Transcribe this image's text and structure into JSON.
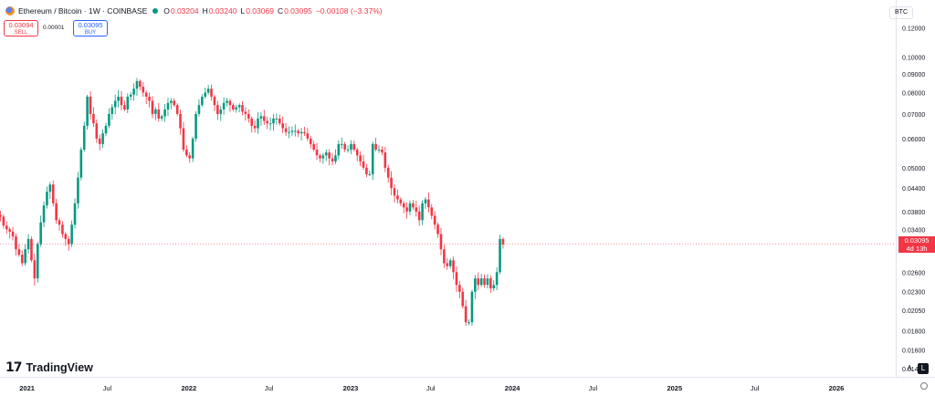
{
  "header": {
    "symbol": "Ethereum / Bitcoin · 1W · COINBASE",
    "o_label": "O",
    "o": "0.03204",
    "h_label": "H",
    "h": "0.03240",
    "l_label": "L",
    "l": "0.03069",
    "c_label": "C",
    "c": "0.03095",
    "change": "−0.00108 (−3.37%)"
  },
  "trade": {
    "sell_price": "0.03094",
    "sell_label": "SELL",
    "spread": "0.00001",
    "buy_price": "0.03095",
    "buy_label": "BUY"
  },
  "currency": "BTC",
  "last_price": {
    "value": "0.03095",
    "countdown": "4d 13h"
  },
  "brand": "TradingView",
  "scale_buttons": {
    "auto": "A",
    "log": "L"
  },
  "colors": {
    "up": "#089981",
    "down": "#f23645",
    "axis_text": "#131722"
  },
  "chart_data": {
    "type": "candlestick",
    "title": "",
    "xlabel": "",
    "ylabel": "",
    "scale": "log",
    "ylim": [
      0.0135,
      0.126
    ],
    "y_ticks": [
      "0.12000",
      "0.10000",
      "0.09000",
      "0.08000",
      "0.07000",
      "0.06000",
      "0.05000",
      "0.04400",
      "0.03800",
      "0.03400",
      "0.03000",
      "0.02600",
      "0.02300",
      "0.02050",
      "0.01800",
      "0.01600",
      "0.01420"
    ],
    "x_ticks": [
      "2021",
      "Jul",
      "2022",
      "Jul",
      "2023",
      "Jul",
      "2024",
      "Jul",
      "2025",
      "Jul",
      "2026"
    ],
    "x_range": [
      "2020-11-01",
      "2026-05-15"
    ],
    "last_price_line": 0.03095,
    "weeks_start": "2020-11-02",
    "closes": [
      0.0368,
      0.0348,
      0.034,
      0.0335,
      0.0325,
      0.03,
      0.029,
      0.0275,
      0.03,
      0.032,
      0.028,
      0.025,
      0.031,
      0.0355,
      0.0395,
      0.043,
      0.045,
      0.04,
      0.036,
      0.035,
      0.033,
      0.032,
      0.031,
      0.035,
      0.04,
      0.047,
      0.056,
      0.065,
      0.078,
      0.07,
      0.066,
      0.06,
      0.058,
      0.062,
      0.065,
      0.07,
      0.073,
      0.076,
      0.078,
      0.074,
      0.072,
      0.078,
      0.079,
      0.082,
      0.086,
      0.083,
      0.08,
      0.078,
      0.076,
      0.07,
      0.072,
      0.068,
      0.069,
      0.072,
      0.075,
      0.076,
      0.074,
      0.07,
      0.064,
      0.056,
      0.054,
      0.053,
      0.06,
      0.07,
      0.074,
      0.078,
      0.08,
      0.082,
      0.078,
      0.074,
      0.07,
      0.072,
      0.075,
      0.076,
      0.074,
      0.072,
      0.073,
      0.074,
      0.071,
      0.07,
      0.068,
      0.065,
      0.064,
      0.068,
      0.069,
      0.067,
      0.066,
      0.066,
      0.068,
      0.068,
      0.066,
      0.064,
      0.0625,
      0.0625,
      0.063,
      0.063,
      0.062,
      0.0625,
      0.062,
      0.06,
      0.058,
      0.056,
      0.054,
      0.053,
      0.054,
      0.055,
      0.053,
      0.052,
      0.054,
      0.058,
      0.058,
      0.056,
      0.056,
      0.058,
      0.056,
      0.054,
      0.052,
      0.05,
      0.048,
      0.048,
      0.058,
      0.056,
      0.056,
      0.055,
      0.05,
      0.047,
      0.044,
      0.042,
      0.041,
      0.04,
      0.039,
      0.038,
      0.04,
      0.039,
      0.038,
      0.036,
      0.04,
      0.041,
      0.039,
      0.037,
      0.035,
      0.033,
      0.03,
      0.0275,
      0.027,
      0.028,
      0.026,
      0.024,
      0.023,
      0.021,
      0.019,
      0.019,
      0.023,
      0.025,
      0.024,
      0.025,
      0.024,
      0.025,
      0.0235,
      0.024,
      0.026,
      0.032,
      0.03095
    ]
  }
}
